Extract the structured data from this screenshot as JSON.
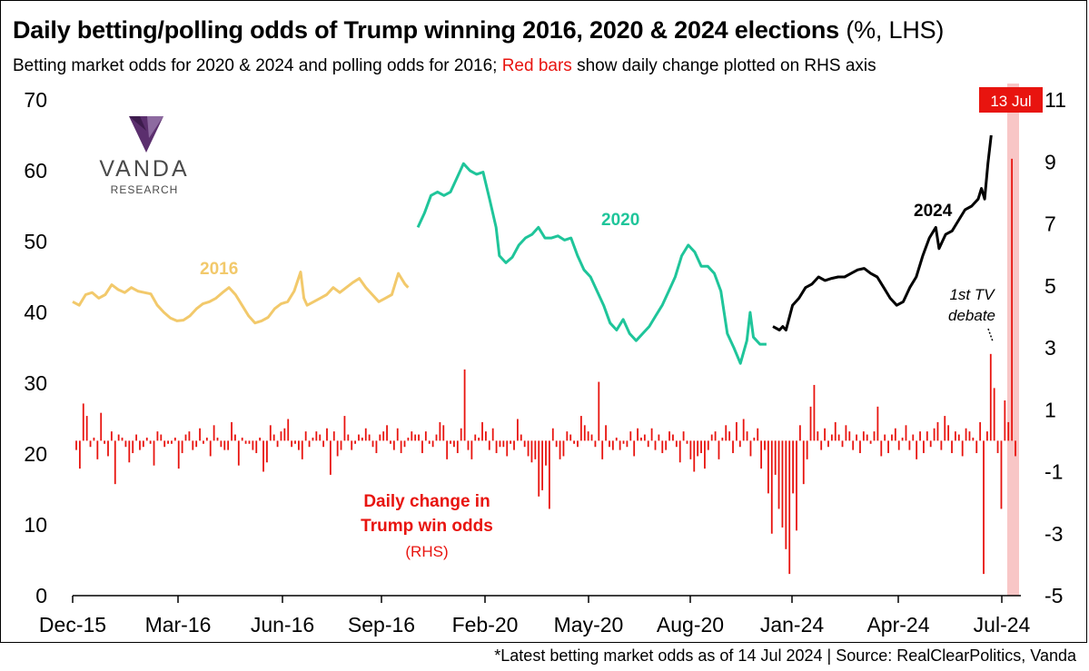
{
  "title": "Daily betting/polling odds of Trump winning 2016, 2020 & 2024 elections",
  "title_unit": "(%, LHS)",
  "subtitle_part1": "Betting market odds for 2020 & 2024 and polling odds for 2016;",
  "subtitle_red": "Red bars",
  "subtitle_part2": "show daily change plotted on RHS axis",
  "footnote": "*Latest betting market odds as of 14 Jul 2024 | Source: RealClearPolitics, Vanda",
  "logo": {
    "brand": "VANDA",
    "sub": "RESEARCH",
    "icon": "vanda-v-logo-icon"
  },
  "colors": {
    "c2016": "#f2c96b",
    "c2020": "#1fc59a",
    "c2024": "#000000",
    "bars": "#e8140f",
    "highlight": "#f8c6c6",
    "flag": "#e8140f"
  },
  "chart_data": {
    "type": "line",
    "x_ticks": [
      "Dec-15",
      "Mar-16",
      "Jun-16",
      "Sep-16",
      "Feb-20",
      "May-20",
      "Aug-20",
      "Jan-24",
      "Apr-24",
      "Jul-24"
    ],
    "y_left": {
      "min": 0,
      "max": 70,
      "ticks": [
        0,
        10,
        20,
        30,
        40,
        50,
        60,
        70
      ]
    },
    "y_right": {
      "min": -5,
      "max": 11,
      "ticks": [
        -5,
        -3,
        -1,
        1,
        3,
        5,
        7,
        9,
        11
      ]
    },
    "series": [
      {
        "name": "2016",
        "color": "#f2c96b",
        "points": [
          [
            0,
            41.5
          ],
          [
            2,
            41.0
          ],
          [
            4,
            42.5
          ],
          [
            6,
            42.8
          ],
          [
            8,
            42.0
          ],
          [
            10,
            42.5
          ],
          [
            12,
            43.9
          ],
          [
            14,
            43.2
          ],
          [
            16,
            42.8
          ],
          [
            18,
            43.5
          ],
          [
            20,
            43.0
          ],
          [
            22,
            42.8
          ],
          [
            24,
            42.6
          ],
          [
            26,
            41.0
          ],
          [
            28,
            40.0
          ],
          [
            30,
            39.2
          ],
          [
            32,
            38.8
          ],
          [
            34,
            38.9
          ],
          [
            36,
            39.5
          ],
          [
            38,
            40.5
          ],
          [
            40,
            41.2
          ],
          [
            42,
            41.5
          ],
          [
            44,
            42.0
          ],
          [
            46,
            42.8
          ],
          [
            48,
            43.5
          ],
          [
            50,
            42.5
          ],
          [
            52,
            41.0
          ],
          [
            54,
            39.5
          ],
          [
            56,
            38.5
          ],
          [
            58,
            38.8
          ],
          [
            60,
            39.3
          ],
          [
            62,
            40.5
          ],
          [
            64,
            41.2
          ],
          [
            66,
            41.5
          ],
          [
            68,
            43.0
          ],
          [
            70,
            45.7
          ],
          [
            71,
            42.0
          ],
          [
            72,
            41.0
          ],
          [
            74,
            41.5
          ],
          [
            76,
            42.0
          ],
          [
            78,
            42.5
          ],
          [
            80,
            43.5
          ],
          [
            82,
            42.8
          ],
          [
            84,
            43.5
          ],
          [
            86,
            44.2
          ],
          [
            88,
            44.8
          ],
          [
            90,
            43.5
          ],
          [
            92,
            42.5
          ],
          [
            94,
            41.5
          ],
          [
            96,
            42.0
          ],
          [
            98,
            42.5
          ],
          [
            100,
            45.5
          ],
          [
            102,
            44.0
          ],
          [
            103,
            43.5
          ]
        ]
      },
      {
        "name": "2020",
        "color": "#1fc59a",
        "points": [
          [
            106,
            52.0
          ],
          [
            108,
            54.0
          ],
          [
            110,
            56.5
          ],
          [
            112,
            57.0
          ],
          [
            114,
            56.5
          ],
          [
            116,
            57.0
          ],
          [
            118,
            59.0
          ],
          [
            120,
            61.0
          ],
          [
            122,
            60.0
          ],
          [
            124,
            59.5
          ],
          [
            126,
            59.8
          ],
          [
            128,
            56.0
          ],
          [
            130,
            52.0
          ],
          [
            131,
            48.0
          ],
          [
            133,
            47.0
          ],
          [
            135,
            47.8
          ],
          [
            137,
            49.5
          ],
          [
            139,
            50.5
          ],
          [
            141,
            51.0
          ],
          [
            143,
            52.0
          ],
          [
            145,
            50.5
          ],
          [
            147,
            50.5
          ],
          [
            149,
            50.8
          ],
          [
            151,
            50.2
          ],
          [
            153,
            50.5
          ],
          [
            155,
            48.0
          ],
          [
            157,
            46.0
          ],
          [
            159,
            45.0
          ],
          [
            161,
            43.0
          ],
          [
            163,
            41.0
          ],
          [
            165,
            38.5
          ],
          [
            167,
            37.5
          ],
          [
            169,
            39.0
          ],
          [
            171,
            37.0
          ],
          [
            173,
            36.0
          ],
          [
            175,
            37.0
          ],
          [
            177,
            38.0
          ],
          [
            179,
            39.5
          ],
          [
            181,
            41.0
          ],
          [
            183,
            43.0
          ],
          [
            185,
            45.0
          ],
          [
            187,
            48.0
          ],
          [
            189,
            49.5
          ],
          [
            191,
            48.5
          ],
          [
            193,
            46.5
          ],
          [
            195,
            46.5
          ],
          [
            197,
            45.5
          ],
          [
            199,
            43.0
          ],
          [
            201,
            37.0
          ],
          [
            203,
            35.0
          ],
          [
            205,
            32.8
          ],
          [
            207,
            36.0
          ],
          [
            208,
            40.0
          ],
          [
            209,
            36.5
          ],
          [
            211,
            35.5
          ],
          [
            213,
            35.5
          ]
        ]
      },
      {
        "name": "2024",
        "color": "#000000",
        "points": [
          [
            215,
            38.0
          ],
          [
            217,
            37.5
          ],
          [
            218,
            38.0
          ],
          [
            219,
            37.5
          ],
          [
            221,
            41.0
          ],
          [
            223,
            42.0
          ],
          [
            225,
            43.5
          ],
          [
            227,
            44.0
          ],
          [
            229,
            45.0
          ],
          [
            231,
            44.5
          ],
          [
            233,
            44.8
          ],
          [
            235,
            45.0
          ],
          [
            237,
            45.0
          ],
          [
            239,
            45.5
          ],
          [
            241,
            46.0
          ],
          [
            243,
            46.2
          ],
          [
            245,
            45.5
          ],
          [
            247,
            45.0
          ],
          [
            249,
            43.5
          ],
          [
            251,
            42.0
          ],
          [
            253,
            41.0
          ],
          [
            255,
            41.5
          ],
          [
            257,
            43.5
          ],
          [
            259,
            45.0
          ],
          [
            261,
            48.0
          ],
          [
            263,
            50.5
          ],
          [
            265,
            52.0
          ],
          [
            266,
            49.0
          ],
          [
            268,
            51.0
          ],
          [
            270,
            51.5
          ],
          [
            272,
            53.0
          ],
          [
            274,
            54.5
          ],
          [
            276,
            55.0
          ],
          [
            278,
            56.0
          ],
          [
            279,
            57.5
          ],
          [
            280,
            56.0
          ],
          [
            281,
            61.0
          ],
          [
            282,
            65.0
          ]
        ]
      }
    ],
    "daily_change_bars": [
      -0.3,
      -0.9,
      1.2,
      0.8,
      -0.2,
      0.1,
      -0.6,
      0.9,
      -0.1,
      -0.5,
      0.3,
      -1.4,
      0.2,
      0.1,
      -0.2,
      -0.7,
      -0.4,
      0.2,
      -0.3,
      -0.2,
      0.1,
      -0.1,
      -0.8,
      0.3,
      0.2,
      -0.2,
      -0.1,
      -0.1,
      0.1,
      -0.9,
      -0.4,
      0.2,
      0.3,
      -0.3,
      -0.2,
      0.4,
      -0.1,
      0.1,
      -0.5,
      0.5,
      0.1,
      -0.2,
      -0.3,
      -0.3,
      0.6,
      0.2,
      -0.8,
      0.1,
      -0.1,
      -0.1,
      -0.3,
      -0.4,
      0.1,
      -1.0,
      -0.7,
      0.5,
      0.2,
      -0.2,
      0.3,
      0.4,
      0.7,
      -0.2,
      -0.1,
      -0.3,
      -0.6,
      0.3,
      -0.2,
      0.1,
      0.3,
      0.2,
      -0.2,
      0.4,
      -1.1,
      0.3,
      -0.5,
      -0.3,
      0.8,
      0.2,
      -0.3,
      -0.1,
      0.2,
      0.1,
      0.4,
      0.2,
      -0.2,
      -0.4,
      0.2,
      0.3,
      0.5,
      -0.1,
      -0.3,
      0.4,
      -0.4,
      -0.2,
      0.1,
      0.3,
      0.2,
      0.2,
      -0.4,
      0.3,
      -0.1,
      -0.2,
      0.2,
      0.6,
      0.5,
      -0.6,
      -0.1,
      -0.2,
      -0.4,
      0.4,
      2.3,
      -0.3,
      -0.6,
      0.2,
      0.1,
      0.6,
      0.3,
      -0.3,
      0.4,
      -0.4,
      -0.2,
      -0.2,
      -0.5,
      -0.1,
      -0.3,
      0.7,
      0.2,
      -0.2,
      -0.5,
      -0.7,
      -0.6,
      -1.8,
      -1.6,
      -0.8,
      -2.2,
      0.4,
      -0.2,
      -0.6,
      -0.5,
      0.3,
      0.2,
      -0.1,
      -0.2,
      0.8,
      0.5,
      0.3,
      0.2,
      -0.2,
      1.9,
      -0.6,
      0.5,
      -0.2,
      -0.3,
      0.1,
      -0.3,
      -0.1,
      -0.2,
      0.3,
      -0.5,
      0.4,
      0.1,
      0.2,
      -0.2,
      0.4,
      -0.3,
      0.2,
      -0.4,
      -0.3,
      0.3,
      0.2,
      -0.2,
      -0.7,
      0.3,
      -0.1,
      -0.6,
      -1.0,
      -0.5,
      -0.4,
      -0.9,
      -0.3,
      0.2,
      0.3,
      -0.6,
      0.1,
      0.5,
      0.3,
      -0.4,
      0.6,
      -0.2,
      0.7,
      0.3,
      -0.5,
      0.1,
      0.4,
      -0.9,
      -0.3,
      -1.7,
      -3.0,
      -1.1,
      -2.2,
      -2.8,
      -3.5,
      -4.3,
      -1.7,
      -2.9,
      0.5,
      -1.4,
      -0.6,
      1.1,
      1.8,
      0.3,
      -0.3,
      0.4,
      -0.2,
      0.2,
      0.6,
      0.2,
      -0.2,
      0.5,
      0.3,
      -0.3,
      0.2,
      -0.4,
      0.3,
      0.2,
      -0.1,
      0.3,
      1.1,
      -0.5,
      0.2,
      -0.4,
      0.2,
      0.4,
      -0.3,
      0.1,
      0.5,
      -0.3,
      0.2,
      -0.6,
      0.3,
      -0.4,
      0.3,
      -0.2,
      0.4,
      0.6,
      -0.3,
      0.8,
      0.5,
      -0.4,
      0.3,
      0.2,
      -0.5,
      0.4,
      0.3,
      0.1,
      -0.4,
      0.6,
      -4.3,
      0.3,
      2.8,
      1.7,
      -0.4,
      -2.2,
      1.3,
      0.6,
      9.1,
      -0.5
    ]
  },
  "annotations": {
    "label_2016": "2016",
    "label_2020": "2020",
    "label_2024": "2024",
    "bars_label_1": "Daily change in",
    "bars_label_2": "Trump win odds",
    "bars_label_3": "(RHS)",
    "debate_1": "1st TV",
    "debate_2": "debate",
    "flag": "13 Jul"
  }
}
